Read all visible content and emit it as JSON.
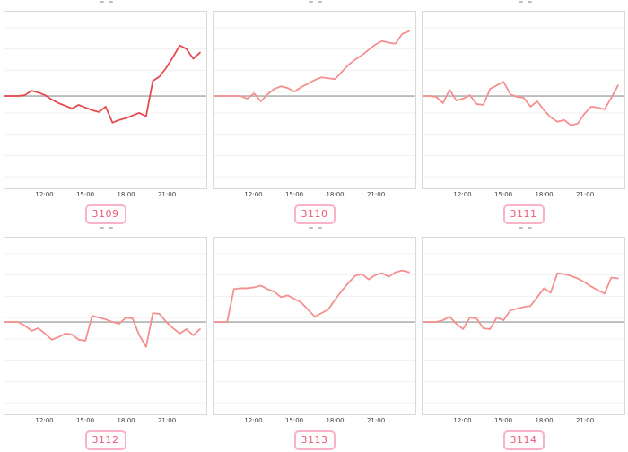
{
  "page": {
    "background": "#ffffff",
    "description": "Dashboard grid of six intraday sparkline charts with id badges"
  },
  "colors": {
    "grid_line": "#f0f0f0",
    "baseline": "#b1b1b1",
    "box_border": "#d9d9d9",
    "tick_text": "#3a3a3a",
    "badge_border": "#f8b3c6",
    "badge_text": "#e95c7b",
    "line_dark_red": "#e6494f",
    "line_salmon": "#f58f8f"
  },
  "chart_data": [
    {
      "type": "line",
      "label": "3109",
      "line_color": "#e6494f",
      "x_ticks": [
        "12:00",
        "15:00",
        "18:00",
        "21:00"
      ],
      "x_tick_indices": [
        6,
        12,
        18,
        24
      ],
      "times": [
        "09:00",
        "09:30",
        "10:00",
        "10:30",
        "11:00",
        "11:30",
        "12:00",
        "12:30",
        "13:00",
        "13:30",
        "14:00",
        "14:30",
        "15:00",
        "15:30",
        "16:00",
        "16:30",
        "17:00",
        "17:30",
        "18:00",
        "18:30",
        "19:00",
        "19:30",
        "20:00",
        "20:30",
        "21:00",
        "21:30",
        "22:00",
        "22:30",
        "23:00",
        "23:30"
      ],
      "values": [
        0,
        0,
        0,
        1,
        6,
        4,
        1,
        -4,
        -8,
        -11,
        -14,
        -10,
        -13,
        -16,
        -18,
        -12,
        -30,
        -27,
        -25,
        -22,
        -19,
        -23,
        17,
        22,
        32,
        44,
        57,
        53,
        42,
        49
      ],
      "baseline": 0,
      "y_units": "deviation from gray baseline (y axis unlabeled)"
    },
    {
      "type": "line",
      "label": "3110",
      "line_color": "#f58f8f",
      "x_ticks": [
        "12:00",
        "15:00",
        "18:00",
        "21:00"
      ],
      "x_tick_indices": [
        6,
        12,
        18,
        24
      ],
      "times": [
        "09:00",
        "09:30",
        "10:00",
        "10:30",
        "11:00",
        "11:30",
        "12:00",
        "12:30",
        "13:00",
        "13:30",
        "14:00",
        "14:30",
        "15:00",
        "15:30",
        "16:00",
        "16:30",
        "17:00",
        "17:30",
        "18:00",
        "18:30",
        "19:00",
        "19:30",
        "20:00",
        "20:30",
        "21:00",
        "21:30",
        "22:00",
        "22:30",
        "23:00",
        "23:30"
      ],
      "values": [
        0,
        0,
        0,
        0,
        0,
        -3,
        3,
        -6,
        2,
        8,
        11,
        9,
        5,
        10,
        14,
        18,
        21,
        20,
        19,
        27,
        35,
        41,
        46,
        52,
        58,
        62,
        60,
        59,
        70,
        73
      ],
      "baseline": 0,
      "y_units": "deviation from gray baseline (y axis unlabeled)"
    },
    {
      "type": "line",
      "label": "3111",
      "line_color": "#f58f8f",
      "x_ticks": [
        "12:00",
        "15:00",
        "18:00",
        "21:00"
      ],
      "x_tick_indices": [
        6,
        12,
        18,
        24
      ],
      "times": [
        "09:00",
        "09:30",
        "10:00",
        "10:30",
        "11:00",
        "11:30",
        "12:00",
        "12:30",
        "13:00",
        "13:30",
        "14:00",
        "14:30",
        "15:00",
        "15:30",
        "16:00",
        "16:30",
        "17:00",
        "17:30",
        "18:00",
        "18:30",
        "19:00",
        "19:30",
        "20:00",
        "20:30",
        "21:00",
        "21:30",
        "22:00",
        "22:30",
        "23:00",
        "23:30"
      ],
      "values": [
        0,
        0,
        -1,
        -8,
        7,
        -5,
        -3,
        1,
        -9,
        -10,
        8,
        12,
        16,
        2,
        -1,
        -2,
        -12,
        -6,
        -16,
        -24,
        -29,
        -27,
        -33,
        -31,
        -20,
        -12,
        -13,
        -15,
        -2,
        12
      ],
      "baseline": 0,
      "y_units": "deviation from gray baseline (y axis unlabeled)"
    },
    {
      "type": "line",
      "label": "3112",
      "line_color": "#f58f8f",
      "x_ticks": [
        "12:00",
        "15:00",
        "18:00",
        "21:00"
      ],
      "x_tick_indices": [
        6,
        12,
        18,
        24
      ],
      "times": [
        "09:00",
        "09:30",
        "10:00",
        "10:30",
        "11:00",
        "11:30",
        "12:00",
        "12:30",
        "13:00",
        "13:30",
        "14:00",
        "14:30",
        "15:00",
        "15:30",
        "16:00",
        "16:30",
        "17:00",
        "17:30",
        "18:00",
        "18:30",
        "19:00",
        "19:30",
        "20:00",
        "20:30",
        "21:00",
        "21:30",
        "22:00",
        "22:30",
        "23:00",
        "23:30"
      ],
      "values": [
        0,
        0,
        0,
        -4,
        -10,
        -7,
        -13,
        -20,
        -17,
        -13,
        -14,
        -20,
        -21,
        7,
        5,
        3,
        0,
        -2,
        5,
        4,
        -15,
        -28,
        10,
        9,
        0,
        -7,
        -13,
        -8,
        -15,
        -8
      ],
      "baseline": 0,
      "y_units": "deviation from gray baseline (y axis unlabeled)"
    },
    {
      "type": "line",
      "label": "3113",
      "line_color": "#f58f8f",
      "x_ticks": [
        "12:00",
        "15:00",
        "18:00",
        "21:00"
      ],
      "x_tick_indices": [
        6,
        12,
        18,
        24
      ],
      "times": [
        "09:00",
        "09:30",
        "10:00",
        "10:30",
        "11:00",
        "11:30",
        "12:00",
        "12:30",
        "13:00",
        "13:30",
        "14:00",
        "14:30",
        "15:00",
        "15:30",
        "16:00",
        "16:30",
        "17:00",
        "17:30",
        "18:00",
        "18:30",
        "19:00",
        "19:30",
        "20:00",
        "20:30",
        "21:00",
        "21:30",
        "22:00",
        "22:30",
        "23:00",
        "23:30"
      ],
      "values": [
        0,
        0,
        0,
        37,
        38,
        38,
        39,
        41,
        37,
        34,
        28,
        30,
        26,
        22,
        14,
        6,
        10,
        14,
        25,
        35,
        44,
        52,
        54,
        48,
        53,
        55,
        51,
        56,
        58,
        56
      ],
      "baseline": 0,
      "y_units": "deviation from gray baseline (y axis unlabeled)"
    },
    {
      "type": "line",
      "label": "3114",
      "line_color": "#f58f8f",
      "x_ticks": [
        "12:00",
        "15:00",
        "18:00",
        "21:00"
      ],
      "x_tick_indices": [
        6,
        12,
        18,
        24
      ],
      "times": [
        "09:00",
        "09:30",
        "10:00",
        "10:30",
        "11:00",
        "11:30",
        "12:00",
        "12:30",
        "13:00",
        "13:30",
        "14:00",
        "14:30",
        "15:00",
        "15:30",
        "16:00",
        "16:30",
        "17:00",
        "17:30",
        "18:00",
        "18:30",
        "19:00",
        "19:30",
        "20:00",
        "20:30",
        "21:00",
        "21:30",
        "22:00",
        "22:30",
        "23:00",
        "23:30"
      ],
      "values": [
        0,
        0,
        0,
        2,
        6,
        -2,
        -8,
        5,
        4,
        -7,
        -8,
        5,
        2,
        13,
        15,
        17,
        18,
        28,
        38,
        33,
        55,
        54,
        52,
        49,
        45,
        40,
        36,
        32,
        50,
        49
      ],
      "baseline": 0,
      "y_units": "deviation from gray baseline (y axis unlabeled)"
    }
  ]
}
